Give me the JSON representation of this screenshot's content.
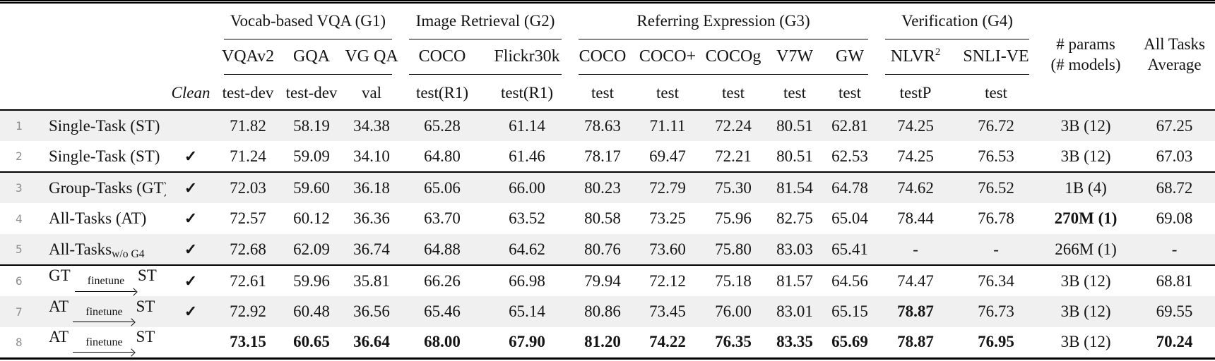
{
  "table": {
    "check_glyph": "✓",
    "header": {
      "groups": [
        {
          "label": "Vocab-based VQA (G1)",
          "span": 3
        },
        {
          "label": "Image Retrieval (G2)",
          "span": 2
        },
        {
          "label": "Referring Expression (G3)",
          "span": 5
        },
        {
          "label": "Verification (G4)",
          "span": 2
        }
      ],
      "clean": "Clean",
      "datasets": [
        "VQAv2",
        "GQA",
        "VG QA",
        "COCO",
        "Flickr30k",
        "COCO",
        "COCO+",
        "COCOg",
        "V7W",
        "GW",
        "NLVR",
        "SNLI-VE"
      ],
      "nlvr_sup": "2",
      "splits": [
        "test-dev",
        "test-dev",
        "val",
        "test(R1)",
        "test(R1)",
        "test",
        "test",
        "test",
        "test",
        "test",
        "testP",
        "test"
      ],
      "params": [
        "# params",
        "(# models)"
      ],
      "avg": [
        "All Tasks",
        "Average"
      ]
    },
    "rows": [
      {
        "num": "1",
        "label_type": "plain",
        "label": "Single-Task (ST)",
        "clean": false,
        "values": [
          "71.82",
          "58.19",
          "34.38",
          "65.28",
          "61.14",
          "78.63",
          "71.11",
          "72.24",
          "80.51",
          "62.81",
          "74.25",
          "76.72"
        ],
        "bold": [],
        "params": "3B (12)",
        "params_bold": false,
        "avg": "67.25",
        "avg_bold": false,
        "shaded": true,
        "rule_above": false
      },
      {
        "num": "2",
        "label_type": "plain",
        "label": "Single-Task (ST)",
        "clean": true,
        "values": [
          "71.24",
          "59.09",
          "34.10",
          "64.80",
          "61.46",
          "78.17",
          "69.47",
          "72.21",
          "80.51",
          "62.53",
          "74.25",
          "76.53"
        ],
        "bold": [],
        "params": "3B (12)",
        "params_bold": false,
        "avg": "67.03",
        "avg_bold": false,
        "shaded": false,
        "rule_above": false
      },
      {
        "num": "3",
        "label_type": "plain",
        "label": "Group-Tasks (GT)",
        "clean": true,
        "values": [
          "72.03",
          "59.60",
          "36.18",
          "65.06",
          "66.00",
          "80.23",
          "72.79",
          "75.30",
          "81.54",
          "64.78",
          "74.62",
          "76.52"
        ],
        "bold": [],
        "params": "1B (4)",
        "params_bold": false,
        "avg": "68.72",
        "avg_bold": false,
        "shaded": true,
        "rule_above": true
      },
      {
        "num": "4",
        "label_type": "plain",
        "label": "All-Tasks (AT)",
        "clean": true,
        "values": [
          "72.57",
          "60.12",
          "36.36",
          "63.70",
          "63.52",
          "80.58",
          "73.25",
          "75.96",
          "82.75",
          "65.04",
          "78.44",
          "76.78"
        ],
        "bold": [],
        "params": "270M (1)",
        "params_bold": true,
        "avg": "69.08",
        "avg_bold": false,
        "shaded": false,
        "rule_above": false
      },
      {
        "num": "5",
        "label_type": "sub",
        "label": "All-Tasks",
        "label_sub": "w/o G4",
        "clean": true,
        "values": [
          "72.68",
          "62.09",
          "36.74",
          "64.88",
          "64.62",
          "80.76",
          "73.60",
          "75.80",
          "83.03",
          "65.41",
          "-",
          "-"
        ],
        "bold": [],
        "params": "266M (1)",
        "params_bold": false,
        "avg": "-",
        "avg_bold": false,
        "shaded": true,
        "rule_above": false
      },
      {
        "num": "6",
        "label_type": "arrow",
        "label_pre": "GT ",
        "arrow_text": "finetune",
        "label_post": "ST",
        "clean": true,
        "values": [
          "72.61",
          "59.96",
          "35.81",
          "66.26",
          "66.98",
          "79.94",
          "72.12",
          "75.18",
          "81.57",
          "64.56",
          "74.47",
          "76.34"
        ],
        "bold": [],
        "params": "3B (12)",
        "params_bold": false,
        "avg": "68.81",
        "avg_bold": false,
        "shaded": false,
        "rule_above": true
      },
      {
        "num": "7",
        "label_type": "arrow",
        "label_pre": "AT ",
        "arrow_text": "finetune",
        "label_post": "ST",
        "clean": true,
        "values": [
          "72.92",
          "60.48",
          "36.56",
          "65.46",
          "65.14",
          "80.86",
          "73.45",
          "76.00",
          "83.01",
          "65.15",
          "78.87",
          "76.73"
        ],
        "bold": [
          10
        ],
        "params": "3B (12)",
        "params_bold": false,
        "avg": "69.55",
        "avg_bold": false,
        "shaded": true,
        "rule_above": false
      },
      {
        "num": "8",
        "label_type": "arrow",
        "label_pre": "AT ",
        "arrow_text": "finetune",
        "label_post": "ST",
        "clean": false,
        "values": [
          "73.15",
          "60.65",
          "36.64",
          "68.00",
          "67.90",
          "81.20",
          "74.22",
          "76.35",
          "83.35",
          "65.69",
          "78.87",
          "76.95"
        ],
        "bold": [
          0,
          1,
          2,
          3,
          4,
          5,
          6,
          7,
          8,
          9,
          10,
          11
        ],
        "params": "3B (12)",
        "params_bold": false,
        "avg": "70.24",
        "avg_bold": true,
        "shaded": false,
        "rule_above": false
      }
    ]
  }
}
